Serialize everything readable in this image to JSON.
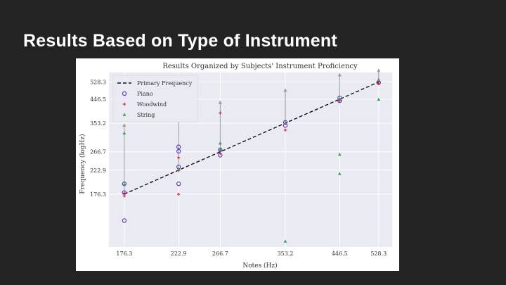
{
  "slide": {
    "title": "Results Based on Type of Instrument"
  },
  "chart_data": {
    "type": "scatter",
    "title": "Results Organized by Subjects' Instrument Proficiency",
    "xlabel": "Notes (Hz)",
    "ylabel": "Frequency (logHz)",
    "x_scale": "log",
    "y_scale": "log",
    "xlim": [
      165,
      560
    ],
    "ylim": [
      105,
      580
    ],
    "x_ticks": [
      "176.3",
      "222.9",
      "266.7",
      "353.2",
      "446.5",
      "528.3"
    ],
    "y_ticks": [
      "176.3",
      "222.9",
      "266.7",
      "353.2",
      "446.5",
      "528.3"
    ],
    "grid": true,
    "legend_position": "top-left",
    "colors": {
      "line": "#111111",
      "piano": "#5b2db5",
      "woodwind": "#c0223c",
      "string": "#3aa05a",
      "range": "#9a9a9a",
      "plot_bg": "#eaeaf2"
    },
    "series": [
      {
        "name": "Primary Frequency",
        "kind": "line",
        "x": [
          176.3,
          222.9,
          266.7,
          353.2,
          446.5,
          528.3
        ],
        "y": [
          176.3,
          222.9,
          266.7,
          353.2,
          446.5,
          528.3
        ]
      },
      {
        "name": "Piano",
        "kind": "points",
        "marker": "circle",
        "x": [
          176.3,
          176.3,
          176.3,
          222.9,
          222.9,
          222.9,
          222.9,
          266.7,
          266.7,
          353.2,
          353.2,
          446.5,
          446.5,
          528.3
        ],
        "y": [
          136,
          179,
          195,
          268,
          280,
          230,
          195,
          258,
          272,
          345,
          356,
          440,
          452,
          525
        ]
      },
      {
        "name": "Woodwind",
        "kind": "points",
        "marker": "plus",
        "x": [
          176.3,
          176.3,
          222.9,
          222.9,
          222.9,
          266.7,
          266.7,
          353.2,
          353.2,
          446.5,
          528.3,
          528.3
        ],
        "y": [
          173,
          178,
          252,
          176,
          222,
          390,
          262,
          330,
          352,
          440,
          520,
          530
        ]
      },
      {
        "name": "String",
        "kind": "points",
        "marker": "triangle",
        "x": [
          176.3,
          176.3,
          222.9,
          222.9,
          266.7,
          266.7,
          353.2,
          353.2,
          446.5,
          446.5,
          446.5,
          528.3,
          528.3
        ],
        "y": [
          320,
          194,
          395,
          225,
          290,
          272,
          111,
          355,
          260,
          215,
          448,
          445,
          540
        ]
      },
      {
        "name": "Range",
        "kind": "range-arrow",
        "x": [
          176.3,
          222.9,
          266.7,
          353.2,
          446.5,
          528.3
        ],
        "y": [
          348,
          410,
          435,
          490,
          570,
          595
        ]
      }
    ]
  }
}
